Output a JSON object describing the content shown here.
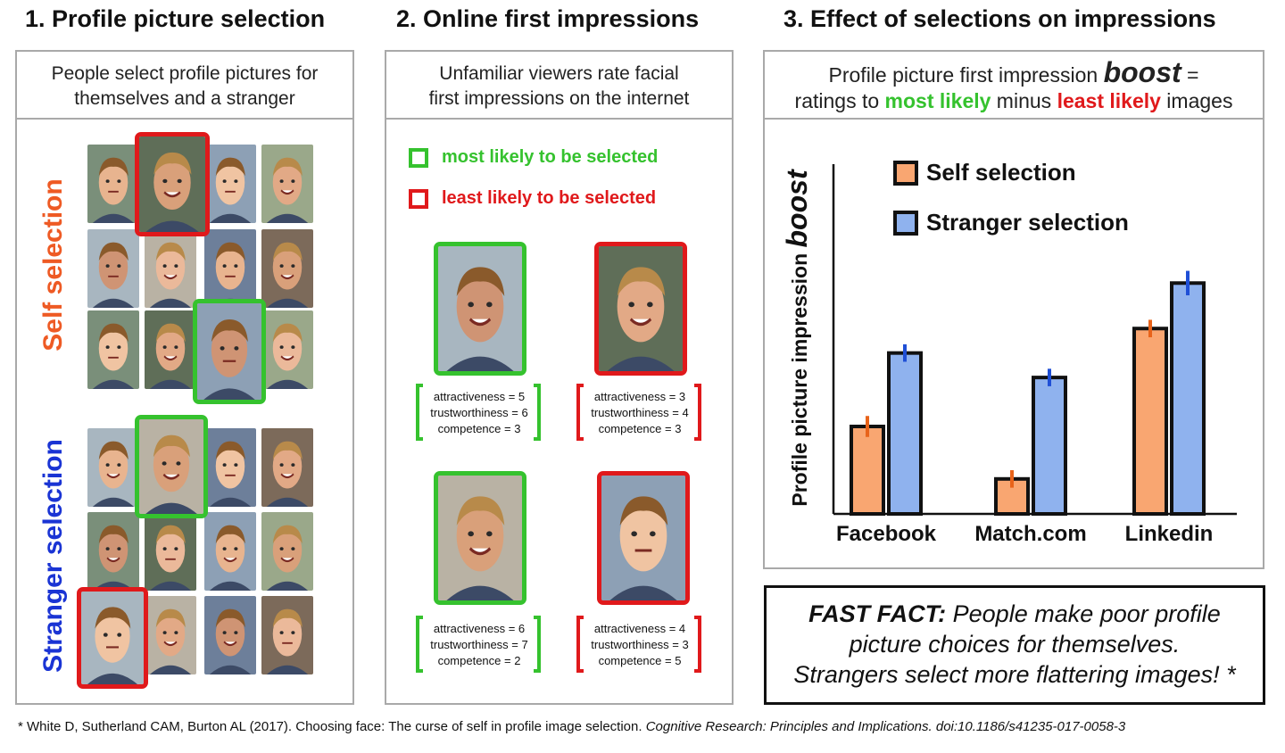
{
  "panel1": {
    "title": "1. Profile picture selection",
    "subtitle_line1": "People select profile pictures for",
    "subtitle_line2": "themselves and a stranger",
    "self_label_word1": "Self",
    "self_label_word2": "selection",
    "stranger_label_word1": "Stranger",
    "stranger_label_word2": "selection"
  },
  "panel2": {
    "title": "2. Online first impressions",
    "subtitle_line1": "Unfamiliar viewers rate facial",
    "subtitle_line2": "first impressions on the internet",
    "legend_most": "most likely to be selected",
    "legend_least": "least likely to be selected",
    "ratings": [
      {
        "attractiveness": "attractiveness = 5",
        "trustworthiness": "trustworthiness = 6",
        "competence": "competence = 3"
      },
      {
        "attractiveness": "attractiveness = 3",
        "trustworthiness": "trustworthiness = 4",
        "competence": "competence = 3"
      },
      {
        "attractiveness": "attractiveness = 6",
        "trustworthiness": "trustworthiness = 7",
        "competence": "competence = 2"
      },
      {
        "attractiveness": "attractiveness = 4",
        "trustworthiness": "trustworthiness = 3",
        "competence": "competence = 5"
      }
    ]
  },
  "panel3": {
    "title": "3. Effect of selections on impressions",
    "sub_pre": "Profile picture first impression ",
    "sub_boost": "boost",
    "sub_eq": " =",
    "sub2_pre": "ratings to ",
    "sub2_most": "most likely",
    "sub2_mid": " minus ",
    "sub2_least": "least likely",
    "sub2_post": " images"
  },
  "chart_data": {
    "type": "bar",
    "ylabel": "Profile picture impression",
    "ylabel_emph": "boost",
    "categories": [
      "Facebook",
      "Match.com",
      "Linkedin"
    ],
    "series": [
      {
        "name": "Self selection",
        "color": "#f9a671",
        "err_color": "#e8631a",
        "values": [
          25,
          10,
          53
        ],
        "errors": [
          3,
          2.5,
          2.5
        ]
      },
      {
        "name": "Stranger selection",
        "color": "#8fb2ee",
        "err_color": "#1f4fd6",
        "values": [
          46,
          39,
          66
        ],
        "errors": [
          2.5,
          2.5,
          3.5
        ]
      }
    ],
    "ylim": [
      0,
      100
    ],
    "legend": "top-left",
    "axis_ticks": false
  },
  "fast_fact": {
    "label": "FAST FACT:",
    "line1_rest": " People make poor profile",
    "line2": "picture choices for themselves.",
    "line3": "Strangers select more flattering images! *"
  },
  "footnote": {
    "main": "* White D, Sutherland CAM, Burton AL (2017). Choosing face: The curse of self in profile image selection. ",
    "italic": "Cognitive Research: Principles and Implications. doi:10.1186/s41235-017-0058-3"
  }
}
